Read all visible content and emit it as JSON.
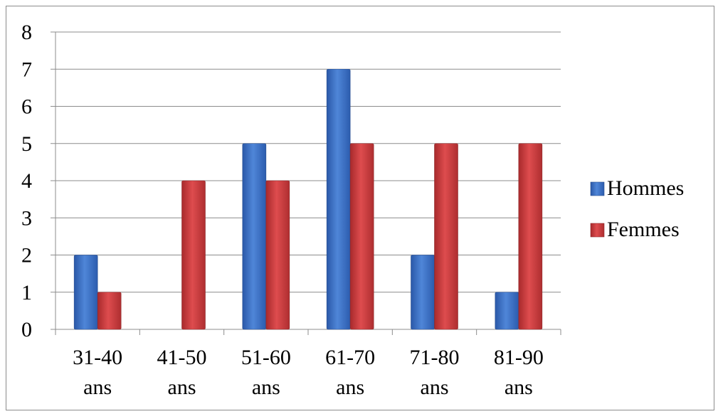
{
  "chart_data": {
    "type": "bar",
    "categories": [
      [
        "31-40",
        "ans"
      ],
      [
        "41-50",
        "ans"
      ],
      [
        "51-60",
        "ans"
      ],
      [
        "61-70",
        "ans"
      ],
      [
        "71-80",
        "ans"
      ],
      [
        "81-90",
        "ans"
      ]
    ],
    "series": [
      {
        "name": "Hommes",
        "values": [
          2,
          0,
          5,
          7,
          2,
          1
        ],
        "color": "#3A6FC4"
      },
      {
        "name": "Femmes",
        "values": [
          1,
          4,
          4,
          5,
          5,
          5
        ],
        "color": "#C8383A"
      }
    ],
    "ylim": [
      0,
      8
    ],
    "yticks": [
      "0",
      "1",
      "2",
      "3",
      "4",
      "5",
      "6",
      "7",
      "8"
    ],
    "grid": true,
    "legend_position": "right",
    "title": "",
    "xlabel": "",
    "ylabel": ""
  }
}
